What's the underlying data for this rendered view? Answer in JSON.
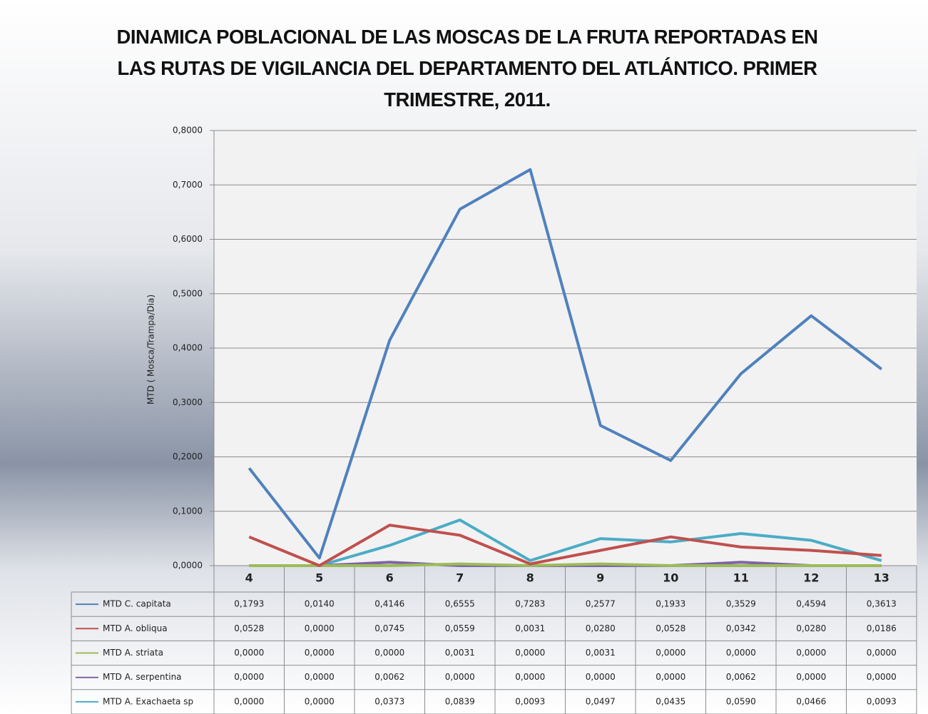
{
  "chart_data": {
    "type": "line",
    "title": "DINAMICA POBLACIONAL DE LAS MOSCAS DE LA FRUTA REPORTADAS EN LAS RUTAS DE VIGILANCIA DEL DEPARTAMENTO DEL ATLÁNTICO. PRIMER TRIMESTRE, 2011.",
    "y_label": "MTD ( Mosca/Trampa/Dia)",
    "categories": [
      "4",
      "5",
      "6",
      "7",
      "8",
      "9",
      "10",
      "11",
      "12",
      "13"
    ],
    "ylim": [
      0,
      0.8
    ],
    "yticks": [
      {
        "value": 0,
        "label": "0,0000"
      },
      {
        "value": 0.1,
        "label": "0,1000"
      },
      {
        "value": 0.2,
        "label": "0,2000"
      },
      {
        "value": 0.3,
        "label": "0,3000"
      },
      {
        "value": 0.4,
        "label": "0,4000"
      },
      {
        "value": 0.5,
        "label": "0,5000"
      },
      {
        "value": 0.6,
        "label": "0,6000"
      },
      {
        "value": 0.7,
        "label": "0,7000"
      },
      {
        "value": 0.8,
        "label": "0,8000"
      }
    ],
    "grid": true,
    "data_table": true,
    "series": [
      {
        "name": "MTD C. capitata",
        "color": "#4f81bd",
        "values": [
          0.1793,
          0.014,
          0.4146,
          0.6555,
          0.7283,
          0.2577,
          0.1933,
          0.3529,
          0.4594,
          0.3613
        ],
        "value_labels": [
          "0,1793",
          "0,0140",
          "0,4146",
          "0,6555",
          "0,7283",
          "0,2577",
          "0,1933",
          "0,3529",
          "0,4594",
          "0,3613"
        ]
      },
      {
        "name": "MTD A. obliqua",
        "color": "#c0504d",
        "values": [
          0.0528,
          0,
          0.0745,
          0.0559,
          0.0031,
          0.028,
          0.0528,
          0.0342,
          0.028,
          0.0186
        ],
        "value_labels": [
          "0,0528",
          "0,0000",
          "0,0745",
          "0,0559",
          "0,0031",
          "0,0280",
          "0,0528",
          "0,0342",
          "0,0280",
          "0,0186"
        ]
      },
      {
        "name": "MTD A. striata",
        "color": "#9bbb59",
        "values": [
          0,
          0,
          0,
          0.0031,
          0,
          0.0031,
          0,
          0,
          0,
          0
        ],
        "value_labels": [
          "0,0000",
          "0,0000",
          "0,0000",
          "0,0031",
          "0,0000",
          "0,0031",
          "0,0000",
          "0,0000",
          "0,0000",
          "0,0000"
        ]
      },
      {
        "name": "MTD A. serpentina",
        "color": "#8064a2",
        "values": [
          0,
          0,
          0.0062,
          0,
          0,
          0,
          0,
          0.0062,
          0,
          0
        ],
        "value_labels": [
          "0,0000",
          "0,0000",
          "0,0062",
          "0,0000",
          "0,0000",
          "0,0000",
          "0,0000",
          "0,0062",
          "0,0000",
          "0,0000"
        ]
      },
      {
        "name": "MTD A. Exachaeta sp",
        "color": "#4bacc6",
        "values": [
          0,
          0,
          0.0373,
          0.0839,
          0.0093,
          0.0497,
          0.0435,
          0.059,
          0.0466,
          0.0093
        ],
        "value_labels": [
          "0,0000",
          "0,0000",
          "0,0373",
          "0,0839",
          "0,0093",
          "0,0497",
          "0,0435",
          "0,0590",
          "0,0466",
          "0,0093"
        ]
      }
    ]
  }
}
